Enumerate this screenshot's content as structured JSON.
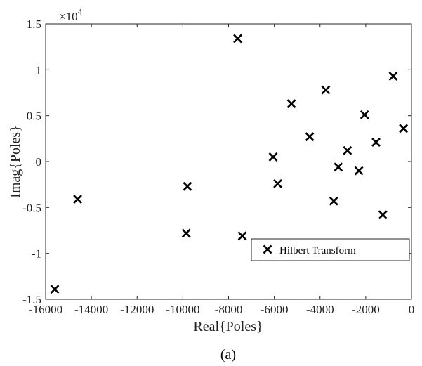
{
  "chart_data": {
    "type": "scatter",
    "title": "",
    "xlabel": "Real{Poles}",
    "ylabel": "Imag{Poles}",
    "y_multiplier_label": "×10",
    "y_multiplier_exponent": "4",
    "xlim": [
      -16000,
      0
    ],
    "ylim": [
      -15000,
      15000
    ],
    "x_ticks": [
      -16000,
      -14000,
      -12000,
      -10000,
      -8000,
      -6000,
      -4000,
      -2000,
      0
    ],
    "x_tick_labels": [
      "-16000",
      "-14000",
      "-12000",
      "-10000",
      "-8000",
      "-6000",
      "-4000",
      "-2000",
      "0"
    ],
    "y_ticks": [
      -15000,
      -10000,
      -5000,
      0,
      5000,
      10000,
      15000
    ],
    "y_tick_labels": [
      "-1.5",
      "-1",
      "-0.5",
      "0",
      "0.5",
      "1",
      "1.5"
    ],
    "grid": false,
    "legend_position": "bottom-right",
    "series": [
      {
        "name": "Hilbert Transform",
        "marker": "x",
        "color": "#000000",
        "points": [
          {
            "x": -15600,
            "y": -13900
          },
          {
            "x": -14600,
            "y": -4100
          },
          {
            "x": -9800,
            "y": -2700
          },
          {
            "x": -9850,
            "y": -7800
          },
          {
            "x": -7600,
            "y": 13400
          },
          {
            "x": -7400,
            "y": -8100
          },
          {
            "x": -6050,
            "y": 500
          },
          {
            "x": -5850,
            "y": -2400
          },
          {
            "x": -5250,
            "y": 6300
          },
          {
            "x": -4450,
            "y": 2700
          },
          {
            "x": -3750,
            "y": 7800
          },
          {
            "x": -3400,
            "y": -4300
          },
          {
            "x": -3200,
            "y": -600
          },
          {
            "x": -2800,
            "y": 1200
          },
          {
            "x": -2300,
            "y": -1000
          },
          {
            "x": -2050,
            "y": 5100
          },
          {
            "x": -1550,
            "y": 2100
          },
          {
            "x": -1250,
            "y": -5800
          },
          {
            "x": -800,
            "y": 9300
          },
          {
            "x": -350,
            "y": 3600
          }
        ]
      }
    ]
  },
  "caption": "(a)"
}
